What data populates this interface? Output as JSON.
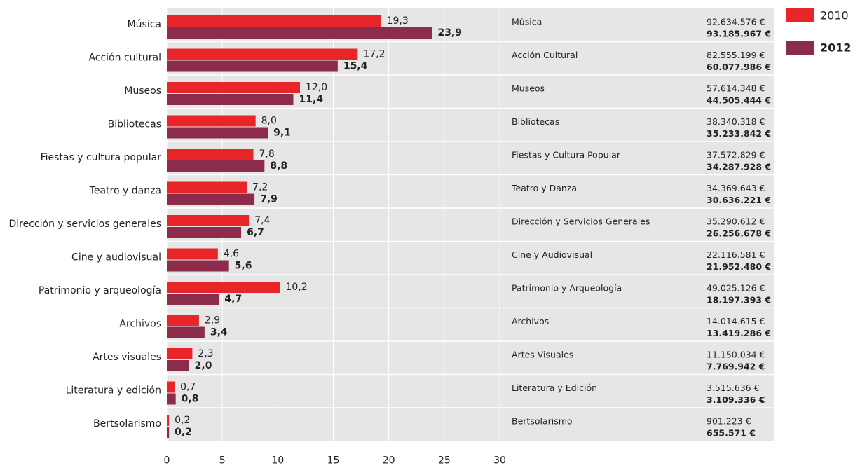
{
  "chart_data": {
    "type": "hbar",
    "categories": [
      "Música",
      "Acción cultural",
      "Museos",
      "Bibliotecas",
      "Fiestas y cultura popular",
      "Teatro y danza",
      "Dirección y servicios generales",
      "Cine y audiovisual",
      "Patrimonio y arqueología",
      "Archivos",
      "Artes visuales",
      "Literatura y edición",
      "Bertsolarismo"
    ],
    "series": [
      {
        "name": "2010",
        "color": "#e8262a",
        "values": [
          19.3,
          17.2,
          12.0,
          8.0,
          7.8,
          7.2,
          7.4,
          4.6,
          10.2,
          2.9,
          2.3,
          0.7,
          0.2
        ],
        "value_labels": [
          "19,3",
          "17,2",
          "12,0",
          "8,0",
          "7,8",
          "7,2",
          "7,4",
          "4,6",
          "10,2",
          "2,9",
          "2,3",
          "0,7",
          "0,2"
        ]
      },
      {
        "name": "2012",
        "color": "#8b2c4a",
        "values": [
          23.9,
          15.4,
          11.4,
          9.1,
          8.8,
          7.9,
          6.7,
          5.6,
          4.7,
          3.4,
          2.0,
          0.8,
          0.2
        ],
        "value_labels": [
          "23,9",
          "15,4",
          "11,4",
          "9,1",
          "8,8",
          "7,9",
          "6,7",
          "5,6",
          "4,7",
          "3,4",
          "2,0",
          "0,8",
          "0,2"
        ]
      }
    ],
    "xlim": [
      0,
      30
    ],
    "xticks": [
      0,
      5,
      10,
      15,
      20,
      25,
      30
    ],
    "grid": true,
    "legend": "top-right"
  },
  "table": {
    "rows": [
      {
        "name": "Música",
        "amount_2010": "92.634.576 €",
        "amount_2012": "93.185.967 €"
      },
      {
        "name": "Acción Cultural",
        "amount_2010": "82.555.199 €",
        "amount_2012": "60.077.986 €"
      },
      {
        "name": "Museos",
        "amount_2010": "57.614.348 €",
        "amount_2012": "44.505.444 €"
      },
      {
        "name": "Bibliotecas",
        "amount_2010": "38.340.318 €",
        "amount_2012": "35.233.842 €"
      },
      {
        "name": "Fiestas y Cultura Popular",
        "amount_2010": "37.572.829 €",
        "amount_2012": "34.287.928 €"
      },
      {
        "name": "Teatro y Danza",
        "amount_2010": "34.369.643 €",
        "amount_2012": "30.636.221 €"
      },
      {
        "name": "Dirección y Servicios Generales",
        "amount_2010": "35.290.612 €",
        "amount_2012": "26.256.678 €"
      },
      {
        "name": "Cine y Audiovisual",
        "amount_2010": "22.116.581 €",
        "amount_2012": "21.952.480 €"
      },
      {
        "name": "Patrimonio y Arqueología",
        "amount_2010": "49.025.126 €",
        "amount_2012": "18.197.393 €"
      },
      {
        "name": "Archivos",
        "amount_2010": "14.014.615 €",
        "amount_2012": "13.419.286 €"
      },
      {
        "name": "Artes Visuales",
        "amount_2010": "11.150.034 €",
        "amount_2012": "7.769.942 €"
      },
      {
        "name": "Literatura y Edición",
        "amount_2010": "3.515.636 €",
        "amount_2012": "3.109.336 €"
      },
      {
        "name": "Bertsolarismo",
        "amount_2010": "901.223 €",
        "amount_2012": "655.571 €"
      }
    ]
  }
}
